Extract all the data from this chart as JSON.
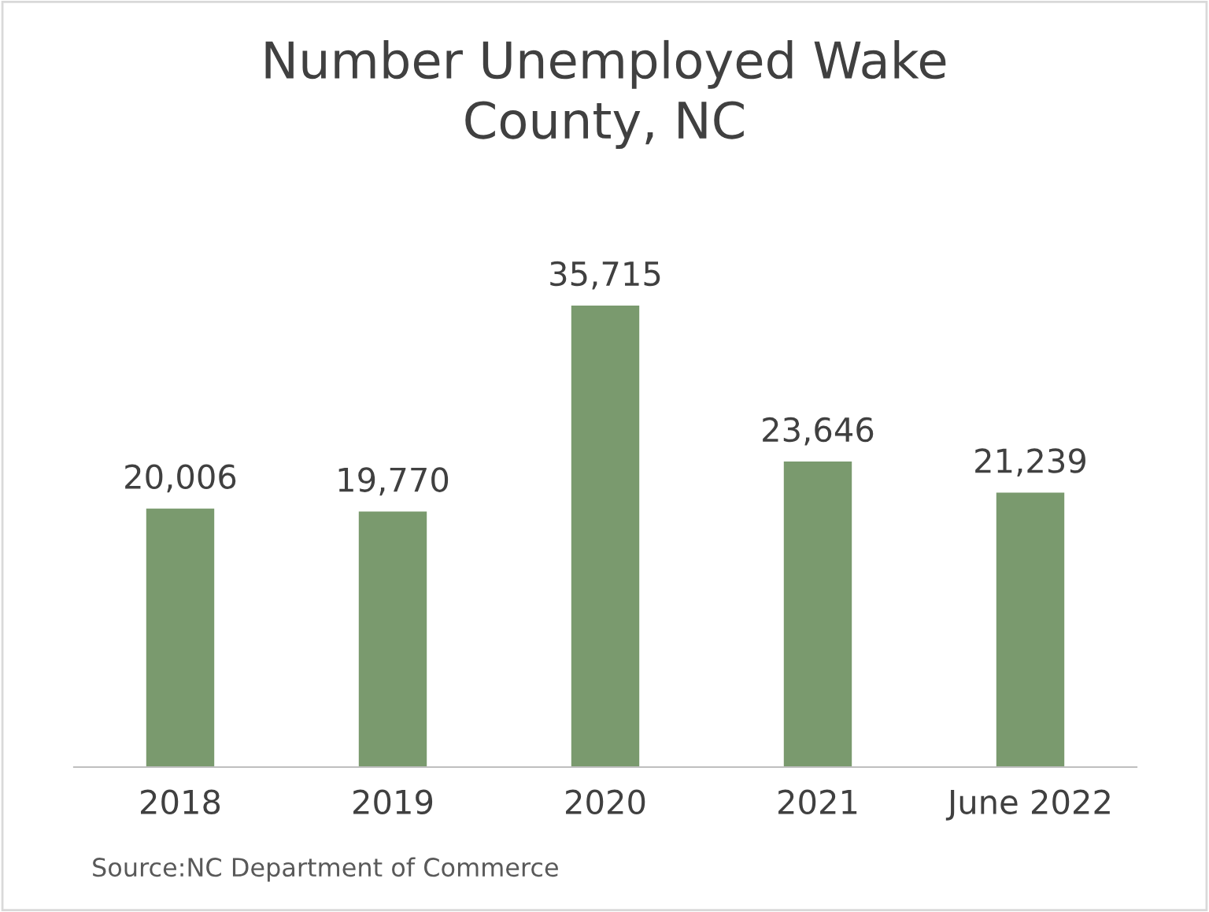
{
  "chart_data": {
    "type": "bar",
    "title": "Number Unemployed Wake\nCounty, NC",
    "categories": [
      "2018",
      "2019",
      "2020",
      "2021",
      "June 2022"
    ],
    "values": [
      20006,
      19770,
      35715,
      23646,
      21239
    ],
    "value_labels": [
      "20,006",
      "19,770",
      "35,715",
      "23,646",
      "21,239"
    ],
    "color": "#7a9a6e",
    "grid": false,
    "annotations": [
      "Source:NC Department of Commerce"
    ]
  }
}
